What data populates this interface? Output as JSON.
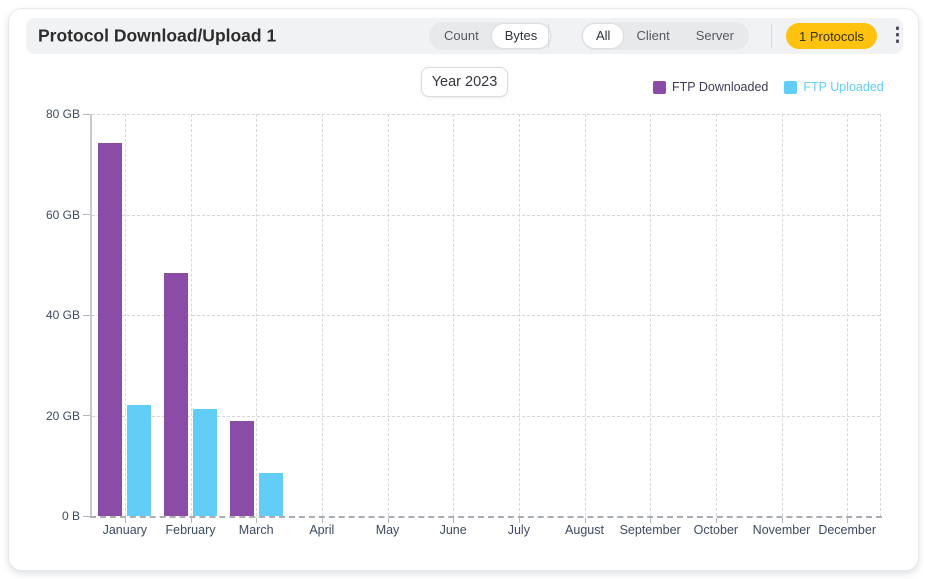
{
  "header": {
    "title": "Protocol Download/Upload 1",
    "count_bytes_toggle": {
      "options": [
        "Count",
        "Bytes"
      ],
      "selected": "Bytes"
    },
    "scope_toggle": {
      "options": [
        "All",
        "Client",
        "Server"
      ],
      "selected": "All"
    },
    "protocols_badge": "1 Protocols"
  },
  "icons": {
    "kebab_menu": "⋮"
  },
  "filters": {
    "year_label": "Year 2023"
  },
  "legend": [
    {
      "label": "FTP Downloaded",
      "swatch_color": "#8b4ca8",
      "text_color": "#413a57"
    },
    {
      "label": "FTP Uploaded",
      "swatch_color": "#62cdf6",
      "text_color": "#62cdf6"
    }
  ],
  "colors": {
    "downloaded": "#8b4ca8",
    "uploaded": "#62cdf6",
    "badge_yellow": "#ffc20e",
    "header_band": "#f1f2f4",
    "axis_text": "#3e4a61"
  },
  "chart_data": {
    "type": "bar",
    "title": "Protocol Download/Upload 1",
    "categories": [
      "January",
      "February",
      "March",
      "April",
      "May",
      "June",
      "July",
      "August",
      "September",
      "October",
      "November",
      "December"
    ],
    "series": [
      {
        "name": "FTP Downloaded",
        "color": "#8b4ca8",
        "unit": "GB",
        "values": [
          74.3,
          48.4,
          19.0,
          0,
          0,
          0,
          0,
          0,
          0,
          0,
          0,
          0
        ]
      },
      {
        "name": "FTP Uploaded",
        "color": "#62cdf6",
        "unit": "GB",
        "values": [
          22.1,
          21.3,
          8.6,
          0,
          0,
          0,
          0,
          0,
          0,
          0,
          0,
          0
        ]
      }
    ],
    "xlabel": "",
    "ylabel": "",
    "ylim": [
      0,
      80
    ],
    "y_ticks": [
      {
        "value": 80,
        "label": "80 GB"
      },
      {
        "value": 60,
        "label": "60 GB"
      },
      {
        "value": 40,
        "label": "40 GB"
      },
      {
        "value": 20,
        "label": "20 GB"
      },
      {
        "value": 0,
        "label": "0 B"
      }
    ],
    "grid": "dashed",
    "legend_position": "top-right"
  }
}
